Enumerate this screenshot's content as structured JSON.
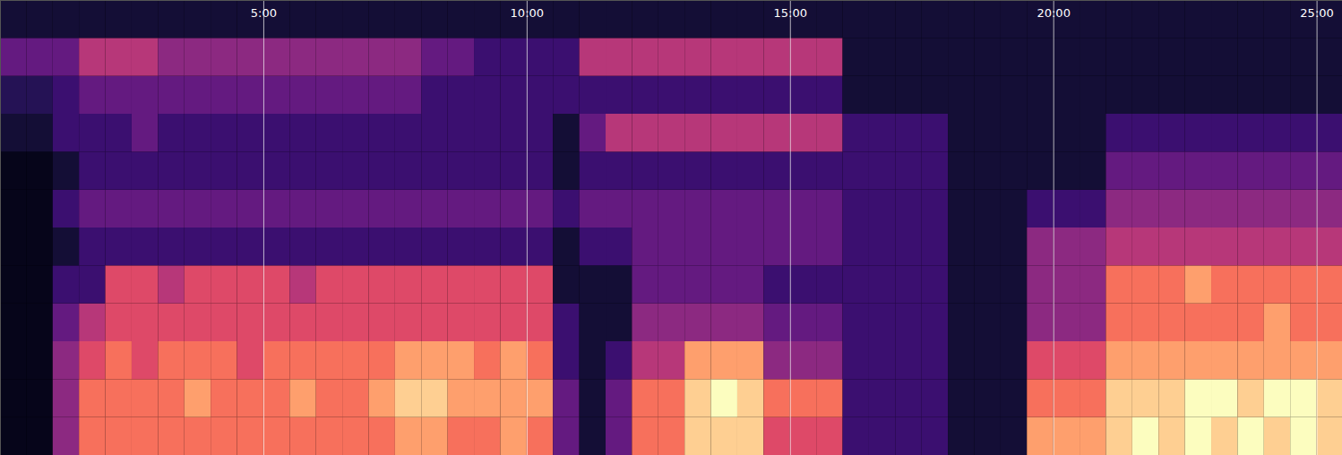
{
  "chart_data": {
    "type": "heatmap",
    "xlim": [
      0,
      1529
    ],
    "ylim": [
      0,
      12
    ],
    "xticks": [
      {
        "value": 300,
        "label": "5:00"
      },
      {
        "value": 600,
        "label": "10:00"
      },
      {
        "value": 900,
        "label": "15:00"
      },
      {
        "value": 1200,
        "label": "20:00"
      },
      {
        "value": 1500,
        "label": "25:00"
      }
    ],
    "grid": true,
    "tick_labels": "x",
    "color": "magma",
    "zlim": [
      0,
      10
    ],
    "x_bins": [
      0,
      30,
      60,
      90,
      120,
      150,
      180,
      210,
      240,
      270,
      300,
      330,
      360,
      390,
      420,
      450,
      480,
      510,
      540,
      570,
      600,
      630,
      660,
      690,
      720,
      750,
      780,
      810,
      840,
      870,
      900,
      930,
      960,
      990,
      1020,
      1050,
      1080,
      1110,
      1140,
      1170,
      1200,
      1230,
      1260,
      1290,
      1320,
      1350,
      1380,
      1410,
      1440,
      1470,
      1500,
      1529
    ],
    "y_bins": [
      0,
      1,
      2,
      3,
      4,
      5,
      6,
      7,
      8,
      9,
      10,
      11,
      12
    ],
    "cells": [
      [
        0.5,
        0.5,
        0.5,
        0.5,
        0.5,
        0.5,
        0.5,
        0.5,
        1,
        1.5,
        3,
        1
      ],
      [
        0.5,
        0.5,
        0.5,
        0.5,
        0.5,
        0.5,
        0.5,
        0.5,
        1,
        1.5,
        3,
        1
      ],
      [
        4,
        4,
        4,
        3,
        2,
        1,
        2,
        1,
        2,
        2,
        3,
        1
      ],
      [
        7,
        7,
        6,
        5,
        2,
        2,
        3,
        2,
        2,
        3,
        5,
        1
      ],
      [
        7,
        7,
        7,
        6,
        6,
        2,
        3,
        2,
        2,
        3,
        5,
        1
      ],
      [
        7,
        7,
        6,
        6,
        6,
        2,
        3,
        2,
        3,
        3,
        5,
        1
      ],
      [
        7,
        7,
        7,
        6,
        5,
        2,
        3,
        2,
        2,
        3,
        4,
        1
      ],
      [
        7,
        8,
        7,
        6,
        6,
        2,
        3,
        2,
        2,
        3,
        4,
        1
      ],
      [
        7,
        7,
        7,
        6,
        6,
        2,
        3,
        2,
        2,
        3,
        4,
        1
      ],
      [
        7,
        7,
        6,
        6,
        6,
        2,
        3,
        2,
        2,
        3,
        4,
        1
      ],
      [
        7,
        7,
        7,
        6,
        6,
        2,
        3,
        2,
        2,
        3,
        4,
        1
      ],
      [
        7,
        8,
        7,
        6,
        5,
        2,
        3,
        2,
        2,
        3,
        4,
        1
      ],
      [
        7,
        7,
        7,
        6,
        6,
        2,
        3,
        2,
        2,
        3,
        4,
        1
      ],
      [
        7,
        7,
        7,
        6,
        6,
        2,
        3,
        2,
        2,
        3,
        4,
        1
      ],
      [
        7,
        8,
        7,
        6,
        6,
        2,
        3,
        2,
        2,
        3,
        4,
        1
      ],
      [
        8,
        9,
        8,
        6,
        6,
        2,
        3,
        2,
        2,
        3,
        4,
        1
      ],
      [
        8,
        9,
        8,
        6,
        6,
        2,
        3,
        2,
        2,
        2,
        3,
        1
      ],
      [
        7,
        8,
        8,
        6,
        6,
        2,
        3,
        2,
        2,
        2,
        3,
        1
      ],
      [
        7,
        8,
        7,
        6,
        6,
        2,
        3,
        2,
        2,
        2,
        2,
        1
      ],
      [
        8,
        8,
        8,
        6,
        6,
        2,
        3,
        2,
        2,
        2,
        2,
        1
      ],
      [
        7,
        8,
        7,
        6,
        6,
        2,
        3,
        2,
        2,
        2,
        2,
        1
      ],
      [
        3,
        3,
        2,
        2,
        1,
        1,
        2,
        1,
        1,
        2,
        2,
        1
      ],
      [
        1,
        1,
        1,
        1,
        1,
        2,
        3,
        2,
        3,
        2,
        5,
        1
      ],
      [
        3,
        3,
        2,
        1,
        1,
        2,
        3,
        2,
        5,
        2,
        5,
        1
      ],
      [
        7,
        7,
        5,
        4,
        3,
        3,
        3,
        2,
        5,
        2,
        5,
        1
      ],
      [
        7,
        7,
        5,
        4,
        3,
        3,
        3,
        2,
        5,
        2,
        5,
        1
      ],
      [
        9,
        9,
        8,
        4,
        3,
        3,
        3,
        2,
        5,
        2,
        5,
        1
      ],
      [
        9,
        10,
        8,
        4,
        3,
        3,
        3,
        2,
        5,
        2,
        5,
        1
      ],
      [
        9,
        9,
        8,
        4,
        3,
        3,
        3,
        2,
        5,
        2,
        5,
        1
      ],
      [
        6,
        7,
        4,
        3,
        2,
        3,
        3,
        2,
        5,
        2,
        5,
        1
      ],
      [
        6,
        7,
        4,
        3,
        2,
        3,
        3,
        2,
        5,
        2,
        5,
        1
      ],
      [
        6,
        7,
        4,
        3,
        2,
        3,
        3,
        2,
        5,
        2,
        5,
        1
      ],
      [
        2,
        2,
        2,
        2,
        2,
        2,
        2,
        2,
        2,
        1,
        1,
        1
      ],
      [
        2,
        2,
        2,
        2,
        2,
        2,
        2,
        2,
        2,
        1,
        1,
        1
      ],
      [
        2,
        2,
        2,
        2,
        2,
        2,
        2,
        2,
        2,
        1,
        1,
        1
      ],
      [
        2,
        2,
        2,
        2,
        2,
        2,
        2,
        2,
        2,
        1,
        1,
        1
      ],
      [
        1,
        1,
        1,
        1,
        1,
        1,
        1,
        1,
        1,
        1,
        1,
        1
      ],
      [
        1,
        1,
        1,
        1,
        1,
        1,
        1,
        1,
        1,
        1,
        1,
        1
      ],
      [
        1,
        1,
        1,
        1,
        1,
        1,
        1,
        1,
        1,
        1,
        1,
        1
      ],
      [
        8,
        7,
        6,
        4,
        4,
        4,
        2,
        1,
        1,
        1,
        1,
        1
      ],
      [
        8,
        7,
        6,
        4,
        4,
        4,
        2,
        1,
        1,
        1,
        1,
        1
      ],
      [
        8,
        7,
        6,
        4,
        4,
        4,
        2,
        1,
        1,
        1,
        1,
        1
      ],
      [
        9,
        9,
        8,
        7,
        7,
        5,
        4,
        3,
        2,
        1,
        1,
        1
      ],
      [
        10,
        9,
        8,
        7,
        7,
        5,
        4,
        3,
        2,
        1,
        1,
        1
      ],
      [
        9,
        9,
        8,
        7,
        7,
        5,
        4,
        3,
        2,
        1,
        1,
        1
      ],
      [
        10,
        10,
        8,
        7,
        8,
        5,
        4,
        3,
        2,
        1,
        1,
        1
      ],
      [
        9,
        10,
        8,
        7,
        7,
        5,
        4,
        3,
        2,
        1,
        1,
        1
      ],
      [
        10,
        9,
        8,
        7,
        7,
        5,
        4,
        3,
        2,
        1,
        1,
        1
      ],
      [
        9,
        10,
        8,
        8,
        7,
        5,
        4,
        3,
        2,
        1,
        1,
        1
      ],
      [
        10,
        10,
        8,
        7,
        7,
        5,
        4,
        3,
        2,
        1,
        1,
        1
      ],
      [
        9,
        9,
        8,
        7,
        7,
        5,
        4,
        3,
        2,
        1,
        1,
        1
      ]
    ]
  }
}
